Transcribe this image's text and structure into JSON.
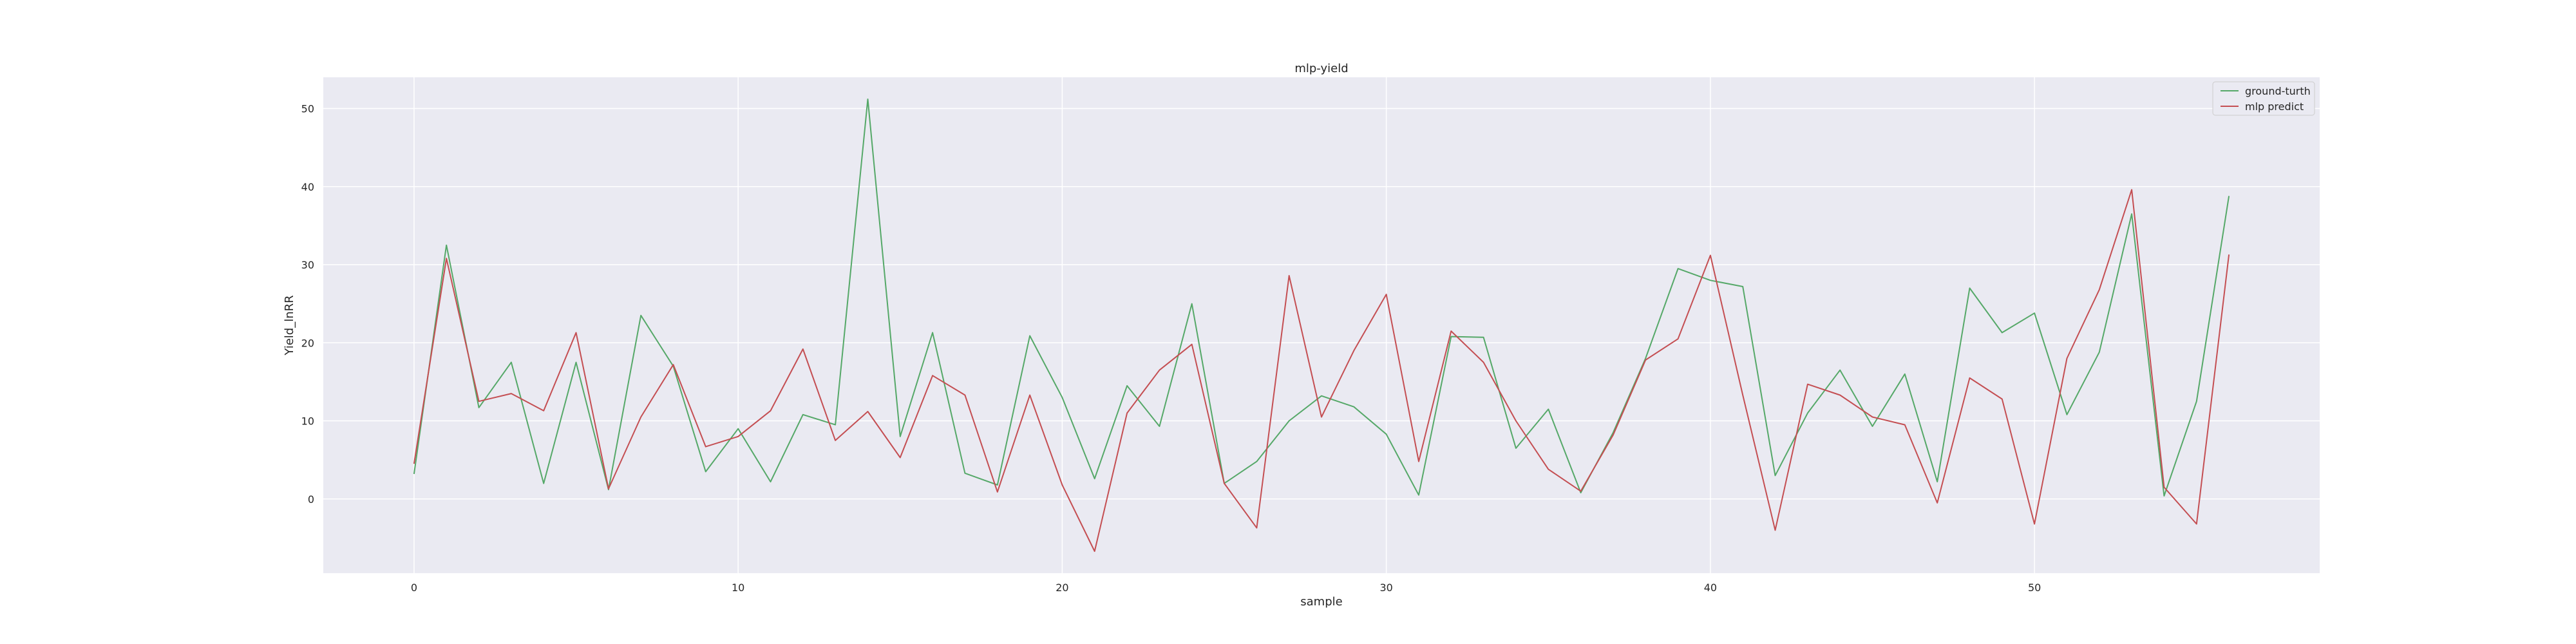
{
  "chart_data": {
    "type": "line",
    "title": "mlp-yield",
    "xlabel": "sample",
    "ylabel": "Yield_lnRR",
    "xlim": [
      -2.8,
      58.8
    ],
    "ylim": [
      -9.5,
      54.0
    ],
    "xticks": [
      0,
      10,
      20,
      30,
      40,
      50
    ],
    "yticks": [
      0,
      10,
      20,
      30,
      40,
      50
    ],
    "grid": true,
    "legend_position": "top-right",
    "colors": {
      "background": "#eaeaf2",
      "grid": "#ffffff",
      "ground_truth": "#55a868",
      "predict": "#c44e52"
    },
    "series": [
      {
        "name": "ground-turth",
        "color": "#55a868",
        "values": [
          3.2,
          32.5,
          11.7,
          17.5,
          2.0,
          17.5,
          1.2,
          23.5,
          17.0,
          3.5,
          9.0,
          2.2,
          10.8,
          9.5,
          51.2,
          8.0,
          21.3,
          3.3,
          1.8,
          20.9,
          13.0,
          2.6,
          14.5,
          9.3,
          25.0,
          2.0,
          4.8,
          10.0,
          13.2,
          11.8,
          8.3,
          0.5,
          20.8,
          20.7,
          6.5,
          11.5,
          0.8,
          8.5,
          18.0,
          29.5,
          28.0,
          27.2,
          3.0,
          11.0,
          16.5,
          9.3,
          16.0,
          2.2,
          27.0,
          21.3,
          23.8,
          10.8,
          18.8,
          36.5,
          0.4,
          12.5,
          38.8
        ]
      },
      {
        "name": "mlp predict",
        "color": "#c44e52",
        "values": [
          4.5,
          30.8,
          12.5,
          13.5,
          11.3,
          21.3,
          1.3,
          10.5,
          17.2,
          6.7,
          8.0,
          11.3,
          19.2,
          7.5,
          11.2,
          5.3,
          15.8,
          13.3,
          0.9,
          13.3,
          1.8,
          -6.7,
          11.0,
          16.5,
          19.8,
          2.0,
          -3.7,
          28.6,
          10.5,
          19.0,
          26.2,
          4.8,
          21.5,
          17.5,
          10.0,
          3.8,
          1.0,
          8.2,
          17.8,
          20.5,
          31.2,
          13.3,
          -4.0,
          14.7,
          13.3,
          10.5,
          9.5,
          -0.5,
          15.5,
          12.8,
          -3.2,
          18.0,
          26.8,
          39.6,
          1.5,
          -3.2,
          31.3
        ]
      }
    ]
  }
}
